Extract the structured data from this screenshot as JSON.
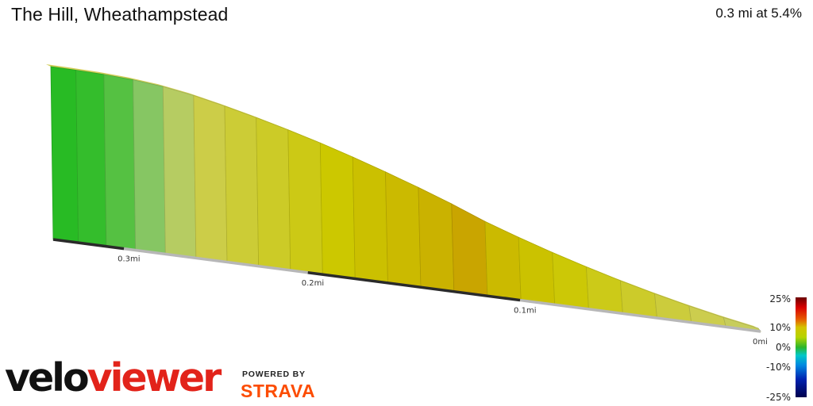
{
  "header": {
    "title": "The Hill, Wheathampstead",
    "stats": "0.3 mi at 5.4%"
  },
  "brand": {
    "velo": "velo",
    "viewer": "viewer",
    "powered_by": "POWERED BY",
    "strava": "STRAVA"
  },
  "chart_data": {
    "type": "area",
    "title": "The Hill, Wheathampstead",
    "subtitle": "0.3 mi at 5.4%",
    "xlabel": "",
    "ylabel": "",
    "distance_unit": "mi",
    "distance_ticks": [
      "0.3mi",
      "0.2mi",
      "0.1mi",
      "0mi"
    ],
    "segments": [
      {
        "grade": 0.3
      },
      {
        "grade": 0.6
      },
      {
        "grade": 1.4
      },
      {
        "grade": 2.6
      },
      {
        "grade": 4.2
      },
      {
        "grade": 5.6
      },
      {
        "grade": 6.2
      },
      {
        "grade": 6.7
      },
      {
        "grade": 7.3
      },
      {
        "grade": 8.0
      },
      {
        "grade": 8.6
      },
      {
        "grade": 9.0
      },
      {
        "grade": 9.6
      },
      {
        "grade": 10.5
      },
      {
        "grade": 9.0
      },
      {
        "grade": 8.4
      },
      {
        "grade": 7.8
      },
      {
        "grade": 7.2
      },
      {
        "grade": 6.6
      },
      {
        "grade": 6.0
      },
      {
        "grade": 5.4
      },
      {
        "grade": 4.8
      }
    ],
    "grade_scale": {
      "ticks": [
        "25%",
        "10%",
        "0%",
        "-10%",
        "-25%"
      ],
      "range": [
        -25,
        25
      ]
    }
  },
  "colors": {
    "brand_red": "#e2231a",
    "strava_orange": "#fc4c02"
  }
}
